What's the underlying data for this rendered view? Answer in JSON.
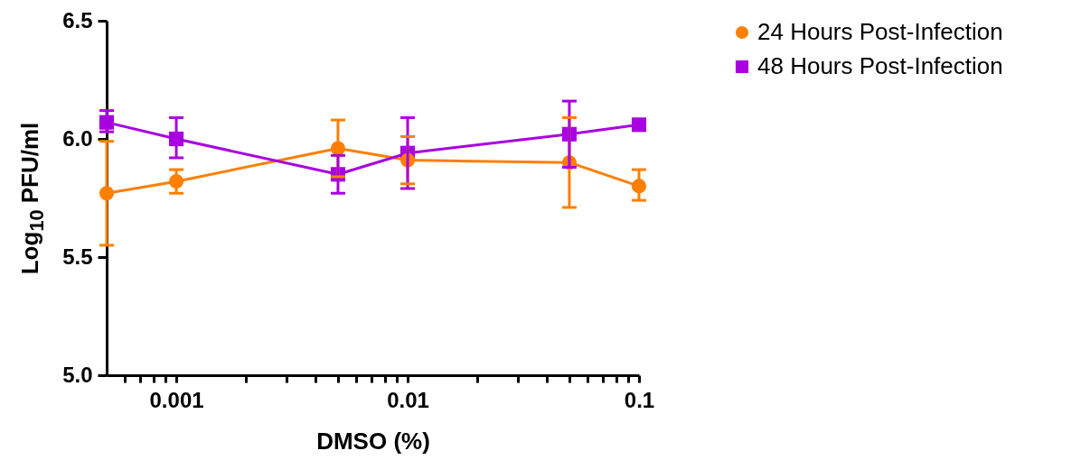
{
  "chart_data": {
    "type": "line",
    "xlabel": "DMSO (%)",
    "ylabel": "Log$_{10}$ PFU/ml",
    "x": [
      0.0005,
      0.001,
      0.005,
      0.01,
      0.05,
      0.1
    ],
    "series": [
      {
        "name": "24 Hours Post-Infection",
        "color": "#ff7f00",
        "marker": "circle",
        "values": [
          5.77,
          5.82,
          5.96,
          5.91,
          5.9,
          5.8
        ],
        "errors": [
          [
            5.55,
            5.99
          ],
          [
            5.77,
            5.87
          ],
          [
            5.84,
            6.08
          ],
          [
            5.81,
            6.01
          ],
          [
            5.71,
            6.09
          ],
          [
            5.74,
            5.87
          ]
        ]
      },
      {
        "name": "48 Hours Post-Infection",
        "color": "#a800e0",
        "marker": "square",
        "values": [
          6.07,
          6.0,
          5.85,
          5.94,
          6.02,
          6.06
        ],
        "errors": [
          [
            6.03,
            6.12
          ],
          [
            5.92,
            6.09
          ],
          [
            5.77,
            5.93
          ],
          [
            5.79,
            6.09
          ],
          [
            5.88,
            6.16
          ],
          null
        ]
      }
    ],
    "log": "x",
    "xlim": [
      0.0005,
      0.1
    ],
    "xticks": [
      {
        "value": 0.0006,
        "label": null
      },
      {
        "value": 0.0007,
        "label": null
      },
      {
        "value": 0.0008,
        "label": null
      },
      {
        "value": 0.0009,
        "label": null
      },
      0.001,
      {
        "value": 0.002,
        "label": null
      },
      {
        "value": 0.003,
        "label": null
      },
      {
        "value": 0.004,
        "label": null
      },
      {
        "value": 0.005,
        "label": null
      },
      {
        "value": 0.006,
        "label": null
      },
      {
        "value": 0.007,
        "label": null
      },
      {
        "value": 0.008,
        "label": null
      },
      {
        "value": 0.009,
        "label": null
      },
      0.01,
      {
        "value": 0.02,
        "label": null
      },
      {
        "value": 0.03,
        "label": null
      },
      {
        "value": 0.04,
        "label": null
      },
      {
        "value": 0.05,
        "label": null
      },
      {
        "value": 0.06,
        "label": null
      },
      {
        "value": 0.07,
        "label": null
      },
      {
        "value": 0.08,
        "label": null
      },
      {
        "value": 0.09,
        "label": null
      },
      0.1
    ],
    "ylim": [
      5.0,
      6.5
    ],
    "yticks": [
      {
        "value": 5,
        "label": "5.0"
      },
      {
        "value": 5.5,
        "label": "5.5"
      },
      {
        "value": 6,
        "label": "6.0"
      },
      {
        "value": 6.5,
        "label": "6.5"
      }
    ],
    "grid": false,
    "legend": "top right",
    "line_style": "solid"
  }
}
